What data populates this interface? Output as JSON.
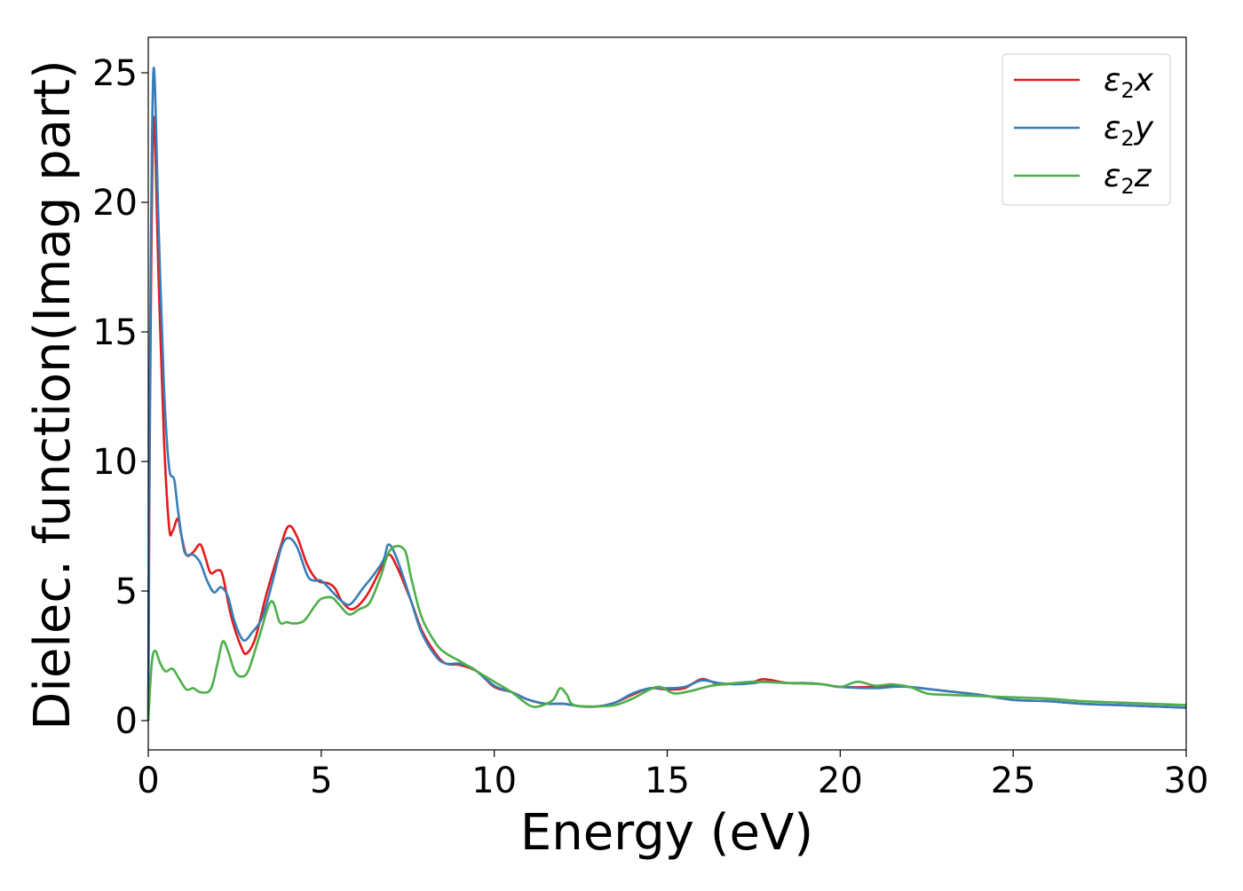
{
  "chart_data": {
    "type": "line",
    "title": "",
    "xlabel": "Energy (eV)",
    "ylabel": "Dielec. function(Imag part)",
    "xlim": [
      0,
      30
    ],
    "ylim": [
      -1.13,
      26.37
    ],
    "xticks": [
      0,
      5,
      10,
      15,
      20,
      25,
      30
    ],
    "yticks": [
      0,
      5,
      10,
      15,
      20,
      25
    ],
    "grid": false,
    "legend_position": "top-right",
    "series": [
      {
        "name": "ε2x",
        "label_base": "ε",
        "label_sub": "2",
        "label_suffix": "x",
        "color": "#e41a1c",
        "x": [
          0,
          0.05,
          0.15,
          0.3,
          0.45,
          0.6,
          0.7,
          0.85,
          0.95,
          1.1,
          1.3,
          1.5,
          1.65,
          1.8,
          2.0,
          2.15,
          2.4,
          2.7,
          2.85,
          3.1,
          3.4,
          3.8,
          4.05,
          4.3,
          4.6,
          4.9,
          5.2,
          5.4,
          5.6,
          5.9,
          6.3,
          6.7,
          6.95,
          7.2,
          7.6,
          7.9,
          8.3,
          8.6,
          9.0,
          9.5,
          10,
          10.5,
          11,
          11.5,
          12,
          12.5,
          13,
          13.5,
          14,
          14.5,
          15,
          15.5,
          16,
          16.5,
          17,
          17.5,
          17.8,
          18.5,
          19,
          19.5,
          20,
          21,
          21.5,
          22,
          23,
          24,
          25,
          26,
          27,
          28,
          29,
          30
        ],
        "y": [
          0,
          12,
          23.2,
          17,
          11,
          7.5,
          7.3,
          7.8,
          7.2,
          6.4,
          6.5,
          6.8,
          6.3,
          5.7,
          5.8,
          5.6,
          4.0,
          2.8,
          2.6,
          3.2,
          4.8,
          6.6,
          7.5,
          7.1,
          6.0,
          5.4,
          5.3,
          5.1,
          4.6,
          4.3,
          4.8,
          5.8,
          6.4,
          5.9,
          4.6,
          3.5,
          2.6,
          2.2,
          2.15,
          1.9,
          1.3,
          1.1,
          0.8,
          0.65,
          0.65,
          0.55,
          0.55,
          0.7,
          1.0,
          1.25,
          1.2,
          1.25,
          1.6,
          1.4,
          1.45,
          1.5,
          1.6,
          1.45,
          1.45,
          1.4,
          1.3,
          1.3,
          1.35,
          1.3,
          1.15,
          1.0,
          0.8,
          0.75,
          0.65,
          0.6,
          0.55,
          0.5
        ]
      },
      {
        "name": "ε2y",
        "label_base": "ε",
        "label_sub": "2",
        "label_suffix": "y",
        "color": "#377eb8",
        "x": [
          0,
          0.05,
          0.15,
          0.3,
          0.45,
          0.6,
          0.75,
          0.85,
          1.0,
          1.1,
          1.3,
          1.5,
          1.7,
          1.9,
          2.1,
          2.3,
          2.5,
          2.75,
          3.0,
          3.3,
          3.6,
          3.85,
          4.05,
          4.3,
          4.6,
          4.8,
          5.0,
          5.3,
          5.6,
          5.85,
          6.2,
          6.5,
          6.8,
          6.95,
          7.2,
          7.6,
          7.9,
          8.3,
          8.6,
          9.0,
          9.4,
          10,
          10.5,
          11,
          11.5,
          12,
          12.5,
          13,
          13.5,
          14,
          14.5,
          15,
          15.5,
          16,
          16.5,
          17,
          17.5,
          17.8,
          18.5,
          19,
          19.5,
          20,
          21,
          21.5,
          22,
          23,
          24,
          25,
          26,
          27,
          28,
          29,
          30
        ],
        "y": [
          0,
          14,
          25.1,
          19,
          13,
          9.8,
          9.3,
          8.2,
          6.8,
          6.4,
          6.4,
          6.1,
          5.4,
          4.95,
          5.15,
          4.8,
          3.8,
          3.1,
          3.4,
          4.0,
          5.4,
          6.7,
          7.05,
          6.7,
          5.6,
          5.4,
          5.4,
          5.0,
          4.6,
          4.5,
          5.1,
          5.6,
          6.2,
          6.8,
          6.2,
          4.6,
          3.4,
          2.5,
          2.2,
          2.2,
          2.0,
          1.35,
          1.1,
          0.8,
          0.65,
          0.65,
          0.55,
          0.55,
          0.7,
          1.05,
          1.25,
          1.25,
          1.3,
          1.55,
          1.45,
          1.4,
          1.45,
          1.5,
          1.45,
          1.45,
          1.4,
          1.3,
          1.25,
          1.3,
          1.3,
          1.15,
          1.0,
          0.8,
          0.75,
          0.65,
          0.6,
          0.55,
          0.5
        ]
      },
      {
        "name": "ε2z",
        "label_base": "ε",
        "label_sub": "2",
        "label_suffix": "z",
        "color": "#4daf4a",
        "x": [
          0,
          0.1,
          0.2,
          0.35,
          0.5,
          0.7,
          0.9,
          1.1,
          1.3,
          1.5,
          1.8,
          2.0,
          2.15,
          2.3,
          2.5,
          2.7,
          2.9,
          3.2,
          3.55,
          3.8,
          4.0,
          4.2,
          4.5,
          4.8,
          5.0,
          5.3,
          5.5,
          5.8,
          6.1,
          6.4,
          6.7,
          7.0,
          7.4,
          7.6,
          7.9,
          8.3,
          8.6,
          9.0,
          9.5,
          10,
          10.5,
          11,
          11.3,
          11.7,
          11.9,
          12.1,
          12.3,
          13,
          13.5,
          14,
          14.5,
          14.8,
          15.2,
          15.7,
          16.3,
          17,
          17.5,
          18.5,
          19.5,
          20,
          20.5,
          21,
          21.5,
          22,
          22.5,
          23,
          24,
          25,
          26,
          27,
          28,
          29,
          30
        ],
        "y": [
          0,
          2.2,
          2.7,
          2.2,
          1.9,
          2.0,
          1.6,
          1.2,
          1.25,
          1.1,
          1.2,
          2.2,
          3.05,
          2.7,
          1.9,
          1.7,
          1.95,
          3.2,
          4.6,
          3.8,
          3.8,
          3.75,
          3.85,
          4.4,
          4.7,
          4.75,
          4.5,
          4.1,
          4.3,
          4.55,
          5.5,
          6.6,
          6.6,
          5.5,
          4.0,
          3.0,
          2.6,
          2.3,
          1.9,
          1.5,
          1.1,
          0.6,
          0.55,
          0.8,
          1.25,
          1.0,
          0.6,
          0.55,
          0.6,
          0.85,
          1.2,
          1.3,
          1.05,
          1.15,
          1.35,
          1.45,
          1.5,
          1.45,
          1.4,
          1.3,
          1.5,
          1.35,
          1.4,
          1.3,
          1.05,
          1.0,
          0.95,
          0.9,
          0.85,
          0.75,
          0.7,
          0.65,
          0.6
        ]
      }
    ]
  }
}
